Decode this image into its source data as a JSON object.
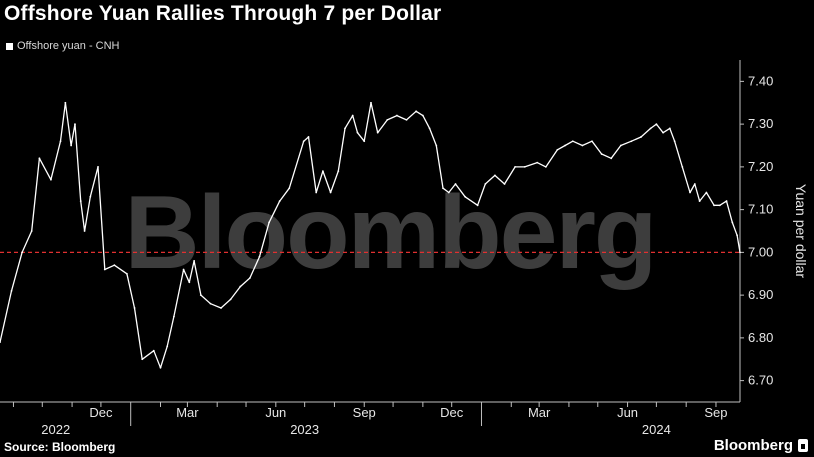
{
  "chart_data": {
    "type": "line",
    "title": "Offshore Yuan Rallies Through 7 per Dollar",
    "ylabel": "Yuan per dollar",
    "ylim": [
      6.65,
      7.45
    ],
    "yticks": [
      "7.40",
      "7.30",
      "7.20",
      "7.10",
      "7.00",
      "6.90",
      "6.80",
      "6.70"
    ],
    "x_range": [
      "2022-08-18",
      "2024-09-26"
    ],
    "month_ticks": [
      {
        "date": "2022-12-01",
        "label": "Dec"
      },
      {
        "date": "2023-03-01",
        "label": "Mar"
      },
      {
        "date": "2023-06-01",
        "label": "Jun"
      },
      {
        "date": "2023-09-01",
        "label": "Sep"
      },
      {
        "date": "2023-12-01",
        "label": "Dec"
      },
      {
        "date": "2024-03-01",
        "label": "Mar"
      },
      {
        "date": "2024-06-01",
        "label": "Jun"
      },
      {
        "date": "2024-09-01",
        "label": "Sep"
      }
    ],
    "year_labels": [
      {
        "date": "2022-10-15",
        "label": "2022"
      },
      {
        "date": "2023-07-01",
        "label": "2023"
      },
      {
        "date": "2024-07-01",
        "label": "2024"
      }
    ],
    "reference_line": {
      "y": 7.0,
      "style": "dashed",
      "color": "#e03030"
    },
    "legend_position": "top-left",
    "grid": false,
    "series": [
      {
        "name": "Offshore yuan - CNH",
        "color": "#ffffff",
        "points": [
          [
            "2022-08-18",
            6.79
          ],
          [
            "2022-08-30",
            6.91
          ],
          [
            "2022-09-10",
            7.0
          ],
          [
            "2022-09-20",
            7.05
          ],
          [
            "2022-09-28",
            7.22
          ],
          [
            "2022-10-10",
            7.17
          ],
          [
            "2022-10-20",
            7.26
          ],
          [
            "2022-10-25",
            7.35
          ],
          [
            "2022-10-31",
            7.25
          ],
          [
            "2022-11-04",
            7.3
          ],
          [
            "2022-11-10",
            7.12
          ],
          [
            "2022-11-14",
            7.05
          ],
          [
            "2022-11-20",
            7.13
          ],
          [
            "2022-11-28",
            7.2
          ],
          [
            "2022-12-05",
            6.96
          ],
          [
            "2022-12-15",
            6.97
          ],
          [
            "2022-12-28",
            6.95
          ],
          [
            "2023-01-05",
            6.87
          ],
          [
            "2023-01-13",
            6.75
          ],
          [
            "2023-01-25",
            6.77
          ],
          [
            "2023-02-01",
            6.73
          ],
          [
            "2023-02-08",
            6.78
          ],
          [
            "2023-02-15",
            6.85
          ],
          [
            "2023-02-25",
            6.96
          ],
          [
            "2023-03-03",
            6.93
          ],
          [
            "2023-03-08",
            6.98
          ],
          [
            "2023-03-15",
            6.9
          ],
          [
            "2023-03-25",
            6.88
          ],
          [
            "2023-04-05",
            6.87
          ],
          [
            "2023-04-15",
            6.89
          ],
          [
            "2023-04-25",
            6.92
          ],
          [
            "2023-05-05",
            6.94
          ],
          [
            "2023-05-15",
            6.99
          ],
          [
            "2023-05-25",
            7.07
          ],
          [
            "2023-06-05",
            7.12
          ],
          [
            "2023-06-15",
            7.15
          ],
          [
            "2023-06-30",
            7.26
          ],
          [
            "2023-07-05",
            7.27
          ],
          [
            "2023-07-13",
            7.14
          ],
          [
            "2023-07-20",
            7.19
          ],
          [
            "2023-07-28",
            7.14
          ],
          [
            "2023-08-05",
            7.19
          ],
          [
            "2023-08-12",
            7.29
          ],
          [
            "2023-08-20",
            7.32
          ],
          [
            "2023-08-25",
            7.28
          ],
          [
            "2023-09-01",
            7.26
          ],
          [
            "2023-09-08",
            7.35
          ],
          [
            "2023-09-15",
            7.28
          ],
          [
            "2023-09-25",
            7.31
          ],
          [
            "2023-10-05",
            7.32
          ],
          [
            "2023-10-15",
            7.31
          ],
          [
            "2023-10-25",
            7.33
          ],
          [
            "2023-11-01",
            7.32
          ],
          [
            "2023-11-08",
            7.29
          ],
          [
            "2023-11-15",
            7.25
          ],
          [
            "2023-11-22",
            7.15
          ],
          [
            "2023-11-28",
            7.14
          ],
          [
            "2023-12-05",
            7.16
          ],
          [
            "2023-12-15",
            7.13
          ],
          [
            "2023-12-28",
            7.11
          ],
          [
            "2024-01-05",
            7.16
          ],
          [
            "2024-01-15",
            7.18
          ],
          [
            "2024-01-25",
            7.16
          ],
          [
            "2024-02-05",
            7.2
          ],
          [
            "2024-02-15",
            7.2
          ],
          [
            "2024-02-28",
            7.21
          ],
          [
            "2024-03-08",
            7.2
          ],
          [
            "2024-03-20",
            7.24
          ],
          [
            "2024-03-28",
            7.25
          ],
          [
            "2024-04-05",
            7.26
          ],
          [
            "2024-04-15",
            7.25
          ],
          [
            "2024-04-25",
            7.26
          ],
          [
            "2024-05-05",
            7.23
          ],
          [
            "2024-05-15",
            7.22
          ],
          [
            "2024-05-25",
            7.25
          ],
          [
            "2024-06-05",
            7.26
          ],
          [
            "2024-06-15",
            7.27
          ],
          [
            "2024-06-25",
            7.29
          ],
          [
            "2024-07-01",
            7.3
          ],
          [
            "2024-07-08",
            7.28
          ],
          [
            "2024-07-15",
            7.29
          ],
          [
            "2024-07-20",
            7.26
          ],
          [
            "2024-07-28",
            7.2
          ],
          [
            "2024-08-05",
            7.14
          ],
          [
            "2024-08-10",
            7.16
          ],
          [
            "2024-08-15",
            7.12
          ],
          [
            "2024-08-22",
            7.14
          ],
          [
            "2024-08-30",
            7.11
          ],
          [
            "2024-09-05",
            7.11
          ],
          [
            "2024-09-12",
            7.12
          ],
          [
            "2024-09-18",
            7.07
          ],
          [
            "2024-09-23",
            7.04
          ],
          [
            "2024-09-26",
            7.0
          ]
        ]
      }
    ],
    "watermark": "Bloomberg"
  },
  "footer": {
    "source": "Source: Bloomberg",
    "brand": "Bloomberg"
  },
  "icons": {
    "brand_mark": "bloomberg-logo-icon"
  }
}
